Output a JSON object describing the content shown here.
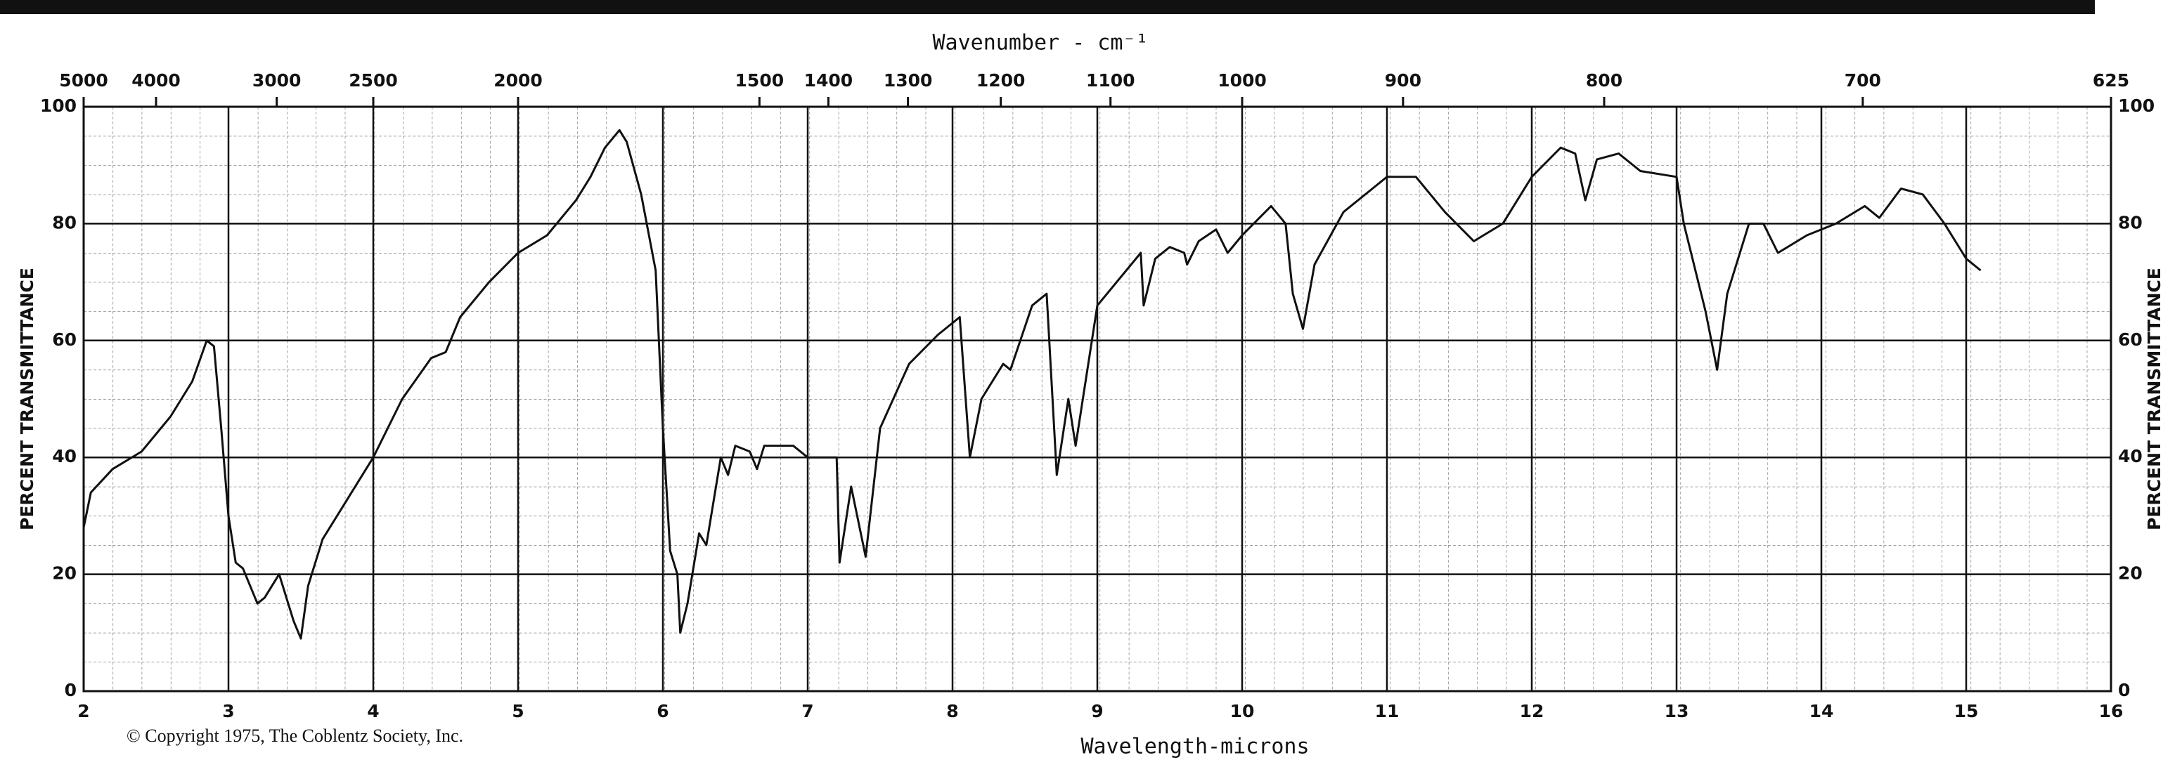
{
  "chart_data": {
    "type": "line",
    "title": "Wavenumber - cm⁻¹",
    "xlabel": "Wavelength-microns",
    "ylabel": "PERCENT TRANSMITTANCE",
    "footnote": "© Copyright 1975, The Coblentz Society, Inc.",
    "xlim": [
      2,
      16
    ],
    "xticks": [
      2,
      3,
      4,
      5,
      6,
      7,
      8,
      9,
      10,
      11,
      12,
      13,
      14,
      15,
      16
    ],
    "ylim": [
      0,
      100
    ],
    "yticks": [
      0,
      20,
      40,
      60,
      80,
      100
    ],
    "x2_scale": "reciprocal",
    "x2ticks": [
      5000,
      4000,
      3000,
      2500,
      2000,
      1500,
      1400,
      1300,
      1200,
      1100,
      1000,
      900,
      800,
      700,
      625
    ],
    "grid": true,
    "series": [
      {
        "color": "#111111",
        "x": [
          2.0,
          2.05,
          2.2,
          2.4,
          2.6,
          2.75,
          2.85,
          2.9,
          2.95,
          3.0,
          3.05,
          3.1,
          3.2,
          3.25,
          3.35,
          3.45,
          3.5,
          3.55,
          3.65,
          3.8,
          4.0,
          4.2,
          4.4,
          4.5,
          4.6,
          4.8,
          5.0,
          5.2,
          5.4,
          5.5,
          5.6,
          5.7,
          5.75,
          5.85,
          5.95,
          6.0,
          6.05,
          6.1,
          6.12,
          6.17,
          6.25,
          6.3,
          6.4,
          6.45,
          6.5,
          6.6,
          6.65,
          6.7,
          6.9,
          7.0,
          7.2,
          7.22,
          7.3,
          7.4,
          7.5,
          7.7,
          7.9,
          8.05,
          8.12,
          8.2,
          8.35,
          8.4,
          8.55,
          8.65,
          8.72,
          8.8,
          8.85,
          9.0,
          9.2,
          9.3,
          9.32,
          9.4,
          9.5,
          9.6,
          9.62,
          9.7,
          9.82,
          9.9,
          10.0,
          10.2,
          10.3,
          10.35,
          10.42,
          10.5,
          10.7,
          10.9,
          11.0,
          11.2,
          11.4,
          11.6,
          11.8,
          12.0,
          12.2,
          12.3,
          12.37,
          12.45,
          12.6,
          12.75,
          13.0,
          13.05,
          13.2,
          13.28,
          13.35,
          13.5,
          13.6,
          13.7,
          13.9,
          14.1,
          14.3,
          14.4,
          14.55,
          14.7,
          14.85,
          15.0,
          15.1
        ],
        "values": [
          28,
          34,
          38,
          41,
          47,
          53,
          60,
          59,
          45,
          30,
          22,
          21,
          15,
          16,
          20,
          12,
          9,
          18,
          26,
          32,
          40,
          50,
          57,
          58,
          64,
          70,
          75,
          78,
          84,
          88,
          93,
          96,
          94,
          85,
          72,
          45,
          24,
          20,
          10,
          15,
          27,
          25,
          40,
          37,
          42,
          41,
          38,
          42,
          42,
          40,
          40,
          22,
          35,
          23,
          45,
          56,
          61,
          64,
          40,
          50,
          56,
          55,
          66,
          68,
          37,
          50,
          42,
          66,
          72,
          75,
          66,
          74,
          76,
          75,
          73,
          77,
          79,
          75,
          78,
          83,
          80,
          68,
          62,
          73,
          82,
          86,
          88,
          88,
          82,
          77,
          80,
          88,
          93,
          92,
          84,
          91,
          92,
          89,
          88,
          80,
          65,
          55,
          68,
          80,
          80,
          75,
          78,
          80,
          83,
          81,
          86,
          85,
          80,
          74,
          72
        ]
      }
    ]
  }
}
